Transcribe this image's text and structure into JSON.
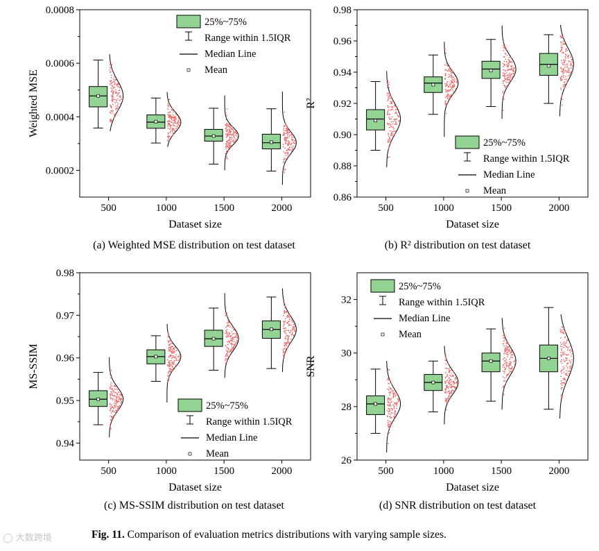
{
  "figure_caption": {
    "label": "Fig. 11.",
    "text": "Comparison of evaluation metrics distributions with varying sample sizes."
  },
  "watermark": "大数跨境",
  "colors": {
    "box_fill": "#93d393",
    "box_stroke": "#000000",
    "points": "#ec6a6a",
    "curve": "#000000"
  },
  "chart_data": [
    {
      "id": "a",
      "type": "raincloud",
      "caption": "(a) Weighted MSE distribution on test dataset",
      "xlabel": "Dataset size",
      "ylabel": "Weighted MSE",
      "categories": [
        "500",
        "1000",
        "1500",
        "2000"
      ],
      "ylim": [
        0.0001,
        0.0008
      ],
      "yticks": [
        0.0002,
        0.0004,
        0.0006,
        0.0008
      ],
      "ytick_labels": [
        "0.0002",
        "0.0004",
        "0.0006",
        "0.0008"
      ],
      "legend_position": "top-right",
      "legend": [
        "25%~75%",
        "Range within 1.5IQR",
        "Median Line",
        "Mean"
      ],
      "boxes": [
        {
          "whisker_low": 0.000358,
          "q1": 0.000437,
          "median": 0.000478,
          "q3": 0.000513,
          "whisker_high": 0.000612,
          "mean": 0.000478,
          "point_min": 0.00038,
          "point_max": 0.0006
        },
        {
          "whisker_low": 0.000302,
          "q1": 0.000357,
          "median": 0.00038,
          "q3": 0.000407,
          "whisker_high": 0.00047,
          "mean": 0.000382,
          "point_min": 0.00031,
          "point_max": 0.00047
        },
        {
          "whisker_low": 0.000223,
          "q1": 0.000309,
          "median": 0.000328,
          "q3": 0.000353,
          "whisker_high": 0.000432,
          "mean": 0.000328,
          "point_min": 0.00022,
          "point_max": 0.00046
        },
        {
          "whisker_low": 0.000197,
          "q1": 0.00028,
          "median": 0.000303,
          "q3": 0.000335,
          "whisker_high": 0.00043,
          "mean": 0.000305,
          "point_min": 0.00017,
          "point_max": 0.00047
        }
      ]
    },
    {
      "id": "b",
      "type": "raincloud",
      "caption": "(b) R² distribution on test dataset",
      "xlabel": "Dataset size",
      "ylabel": "R²",
      "categories": [
        "500",
        "1000",
        "1500",
        "2000"
      ],
      "ylim": [
        0.86,
        0.98
      ],
      "yticks": [
        0.86,
        0.88,
        0.9,
        0.92,
        0.94,
        0.96,
        0.98
      ],
      "ytick_labels": [
        "0.86",
        "0.88",
        "0.90",
        "0.92",
        "0.94",
        "0.96",
        "0.98"
      ],
      "legend_position": "bottom-right",
      "legend": [
        "25%~75%",
        "Range within 1.5IQR",
        "Median Line",
        "Mean"
      ],
      "boxes": [
        {
          "whisker_low": 0.89,
          "q1": 0.903,
          "median": 0.91,
          "q3": 0.916,
          "whisker_high": 0.934,
          "mean": 0.909,
          "point_min": 0.885,
          "point_max": 0.935
        },
        {
          "whisker_low": 0.913,
          "q1": 0.927,
          "median": 0.933,
          "q3": 0.937,
          "whisker_high": 0.951,
          "mean": 0.932,
          "point_min": 0.903,
          "point_max": 0.955
        },
        {
          "whisker_low": 0.918,
          "q1": 0.936,
          "median": 0.942,
          "q3": 0.947,
          "whisker_high": 0.961,
          "mean": 0.941,
          "point_min": 0.915,
          "point_max": 0.965
        },
        {
          "whisker_low": 0.92,
          "q1": 0.938,
          "median": 0.945,
          "q3": 0.952,
          "whisker_high": 0.964,
          "mean": 0.944,
          "point_min": 0.918,
          "point_max": 0.964
        }
      ]
    },
    {
      "id": "c",
      "type": "raincloud",
      "caption": "(c) MS-SSIM distribution on test dataset",
      "xlabel": "Dataset size",
      "ylabel": "MS-SSIM",
      "categories": [
        "500",
        "1000",
        "1500",
        "2000"
      ],
      "ylim": [
        0.936,
        0.98
      ],
      "yticks": [
        0.94,
        0.95,
        0.96,
        0.97,
        0.98
      ],
      "ytick_labels": [
        "0.94",
        "0.95",
        "0.96",
        "0.97",
        "0.98"
      ],
      "legend_position": "bottom-right",
      "legend": [
        "25%~75%",
        "Range within 1.5IQR",
        "Median Line",
        "Mean"
      ],
      "boxes": [
        {
          "whisker_low": 0.9443,
          "q1": 0.9486,
          "median": 0.9503,
          "q3": 0.9523,
          "whisker_high": 0.9566,
          "mean": 0.9503,
          "point_min": 0.943,
          "point_max": 0.9585
        },
        {
          "whisker_low": 0.9545,
          "q1": 0.9586,
          "median": 0.9603,
          "q3": 0.9619,
          "whisker_high": 0.9652,
          "mean": 0.9603,
          "point_min": 0.951,
          "point_max": 0.9665
        },
        {
          "whisker_low": 0.9571,
          "q1": 0.9627,
          "median": 0.9645,
          "q3": 0.9665,
          "whisker_high": 0.9717,
          "mean": 0.9645,
          "point_min": 0.957,
          "point_max": 0.9735
        },
        {
          "whisker_low": 0.9575,
          "q1": 0.9646,
          "median": 0.9667,
          "q3": 0.9687,
          "whisker_high": 0.9743,
          "mean": 0.9667,
          "point_min": 0.9585,
          "point_max": 0.9745
        }
      ]
    },
    {
      "id": "d",
      "type": "raincloud",
      "caption": "(d) SNR distribution on test dataset",
      "xlabel": "Dataset size",
      "ylabel": "SNR",
      "categories": [
        "500",
        "1000",
        "1500",
        "2000"
      ],
      "ylim": [
        26,
        33
      ],
      "yticks": [
        26,
        28,
        30,
        32
      ],
      "ytick_labels": [
        "26",
        "28",
        "30",
        "32"
      ],
      "legend_position": "top-left",
      "legend": [
        "25%~75%",
        "Range within 1.5IQR",
        "Median Line",
        "Mean"
      ],
      "boxes": [
        {
          "whisker_low": 27.0,
          "q1": 27.7,
          "median": 28.1,
          "q3": 28.4,
          "whisker_high": 29.4,
          "mean": 28.1,
          "point_min": 26.6,
          "point_max": 29.4
        },
        {
          "whisker_low": 27.8,
          "q1": 28.6,
          "median": 28.9,
          "q3": 29.2,
          "whisker_high": 29.7,
          "mean": 28.9,
          "point_min": 27.6,
          "point_max": 30.0
        },
        {
          "whisker_low": 28.2,
          "q1": 29.3,
          "median": 29.7,
          "q3": 30.0,
          "whisker_high": 30.9,
          "mean": 29.7,
          "point_min": 28.2,
          "point_max": 31.0
        },
        {
          "whisker_low": 27.9,
          "q1": 29.3,
          "median": 29.8,
          "q3": 30.3,
          "whisker_high": 31.7,
          "mean": 29.8,
          "point_min": 28.0,
          "point_max": 31.0
        }
      ]
    }
  ]
}
